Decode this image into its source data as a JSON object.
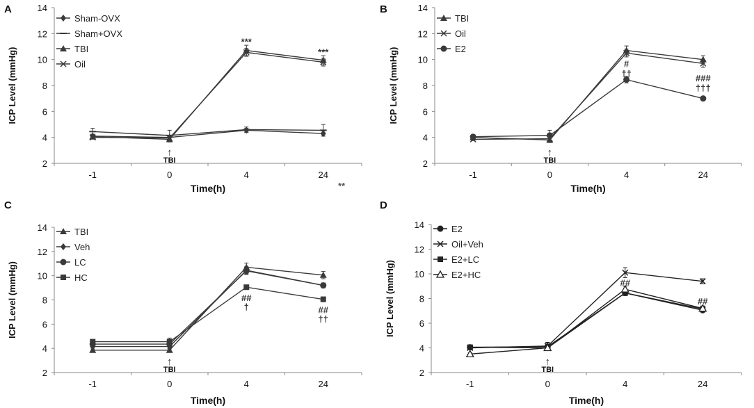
{
  "stray_mark": "**",
  "chart_data": [
    {
      "type": "line",
      "panel_label": "A",
      "ylabel": "ICP Level (mmHg)",
      "xlabel": "Time(h)",
      "categories": [
        "-1",
        "0",
        "4",
        "24"
      ],
      "ylim": [
        2,
        14
      ],
      "yticks": [
        2,
        4,
        6,
        8,
        10,
        12,
        14
      ],
      "legend_position": "top-left",
      "series": [
        {
          "name": "Sham-OVX",
          "marker": "diamond",
          "color": "#3a3a3a",
          "values": [
            4.1,
            4.0,
            4.55,
            4.3
          ],
          "errors": [
            0.15,
            0.15,
            0.15,
            0.2
          ]
        },
        {
          "name": "Sham+OVX",
          "marker": "dash",
          "color": "#3a3a3a",
          "values": [
            4.45,
            4.15,
            4.6,
            4.55
          ],
          "errors": [
            0.25,
            0.4,
            0.2,
            0.45
          ]
        },
        {
          "name": "TBI",
          "marker": "triangle",
          "color": "#3a3a3a",
          "values": [
            4.05,
            3.85,
            10.7,
            9.95
          ],
          "errors": [
            0.15,
            0.2,
            0.4,
            0.35
          ]
        },
        {
          "name": "Oil",
          "marker": "x",
          "color": "#3a3a3a",
          "values": [
            4.0,
            3.95,
            10.55,
            9.8
          ],
          "errors": [
            0.1,
            0.2,
            0.3,
            0.3
          ]
        }
      ],
      "annotations": [
        {
          "x": "0",
          "text": "↑",
          "role": "arrow"
        },
        {
          "x": "0",
          "text": "TBI",
          "role": "event"
        },
        {
          "x": "4",
          "text": "***",
          "y": 11.4
        },
        {
          "x": "24",
          "text": "***",
          "y": 10.6
        }
      ]
    },
    {
      "type": "line",
      "panel_label": "B",
      "ylabel": "ICP Level (mmHg)",
      "xlabel": "Time(h)",
      "categories": [
        "-1",
        "0",
        "4",
        "24"
      ],
      "ylim": [
        2,
        14
      ],
      "yticks": [
        2,
        4,
        6,
        8,
        10,
        12,
        14
      ],
      "legend_position": "top-left",
      "series": [
        {
          "name": "TBI",
          "marker": "triangle",
          "color": "#3a3a3a",
          "values": [
            4.0,
            3.8,
            10.7,
            10.0
          ],
          "errors": [
            0.15,
            0.2,
            0.35,
            0.3
          ]
        },
        {
          "name": "Oil",
          "marker": "x",
          "color": "#3a3a3a",
          "values": [
            3.85,
            3.9,
            10.5,
            9.7
          ],
          "errors": [
            0.1,
            0.25,
            0.3,
            0.3
          ]
        },
        {
          "name": "E2",
          "marker": "circle",
          "color": "#3a3a3a",
          "values": [
            4.05,
            4.15,
            8.45,
            7.0
          ],
          "errors": [
            0.15,
            0.4,
            0.25,
            0.1
          ]
        }
      ],
      "annotations": [
        {
          "x": "0",
          "text": "↑",
          "role": "arrow"
        },
        {
          "x": "0",
          "text": "TBI",
          "role": "event"
        },
        {
          "x": "4",
          "text": "#",
          "y": 9.7
        },
        {
          "x": "4",
          "text": "††",
          "y": 8.95
        },
        {
          "x": "24",
          "text": "###",
          "y": 8.6
        },
        {
          "x": "24",
          "text": "†††",
          "y": 7.85
        }
      ]
    },
    {
      "type": "line",
      "panel_label": "C",
      "ylabel": "ICP Level (mmHg)",
      "xlabel": "Time(h)",
      "categories": [
        "-1",
        "0",
        "4",
        "24"
      ],
      "ylim": [
        2,
        14
      ],
      "yticks": [
        2,
        4,
        6,
        8,
        10,
        12,
        14
      ],
      "legend_position": "top-left",
      "series": [
        {
          "name": "TBI",
          "marker": "triangle",
          "color": "#3a3a3a",
          "values": [
            3.85,
            3.85,
            10.7,
            10.05
          ],
          "errors": [
            0.1,
            0.15,
            0.35,
            0.3
          ]
        },
        {
          "name": "Veh",
          "marker": "diamond",
          "color": "#3a3a3a",
          "values": [
            4.15,
            4.15,
            10.45,
            9.2
          ],
          "errors": [
            0.1,
            0.2,
            0.3,
            0.2
          ]
        },
        {
          "name": "LC",
          "marker": "circle",
          "color": "#3a3a3a",
          "values": [
            4.35,
            4.35,
            10.4,
            9.2
          ],
          "errors": [
            0.1,
            0.2,
            0.3,
            0.2
          ]
        },
        {
          "name": "HC",
          "marker": "square",
          "color": "#3a3a3a",
          "values": [
            4.55,
            4.55,
            9.05,
            8.05
          ],
          "errors": [
            0.15,
            0.3,
            0.15,
            0.2
          ]
        }
      ],
      "annotations": [
        {
          "x": "0",
          "text": "↑",
          "role": "arrow"
        },
        {
          "x": "0",
          "text": "TBI",
          "role": "event"
        },
        {
          "x": "4",
          "text": "##",
          "y": 8.2
        },
        {
          "x": "4",
          "text": "†",
          "y": 7.45
        },
        {
          "x": "24",
          "text": "##",
          "y": 7.2
        },
        {
          "x": "24",
          "text": "††",
          "y": 6.45
        }
      ]
    },
    {
      "type": "line",
      "panel_label": "D",
      "ylabel": "ICP Level (mmHg)",
      "xlabel": "Time(h)",
      "categories": [
        "-1",
        "0",
        "4",
        "24"
      ],
      "ylim": [
        2,
        14
      ],
      "yticks": [
        2,
        4,
        6,
        8,
        10,
        12,
        14
      ],
      "legend_position": "top-left",
      "series": [
        {
          "name": "E2",
          "marker": "circle",
          "color": "#222222",
          "values": [
            4.05,
            4.1,
            8.45,
            7.05
          ],
          "errors": [
            0.1,
            0.3,
            0.2,
            0.15
          ]
        },
        {
          "name": "Oil+Veh",
          "marker": "x",
          "color": "#222222",
          "values": [
            4.0,
            4.15,
            10.1,
            9.4
          ],
          "errors": [
            0.15,
            0.3,
            0.4,
            0.2
          ]
        },
        {
          "name": "E2+LC",
          "marker": "square",
          "color": "#222222",
          "values": [
            4.05,
            4.0,
            8.45,
            7.15
          ],
          "errors": [
            0.15,
            0.2,
            0.2,
            0.15
          ]
        },
        {
          "name": "E2+HC",
          "marker": "triangle-open",
          "color": "#222222",
          "values": [
            3.5,
            4.0,
            8.75,
            7.2
          ],
          "errors": [
            0.1,
            0.2,
            0.25,
            0.2
          ]
        }
      ],
      "annotations": [
        {
          "x": "0",
          "text": "↑",
          "role": "arrow"
        },
        {
          "x": "0",
          "text": "TBI",
          "role": "event"
        },
        {
          "x": "4",
          "text": "##",
          "y": 9.3
        },
        {
          "x": "24",
          "text": "##",
          "y": 7.8
        }
      ]
    }
  ]
}
